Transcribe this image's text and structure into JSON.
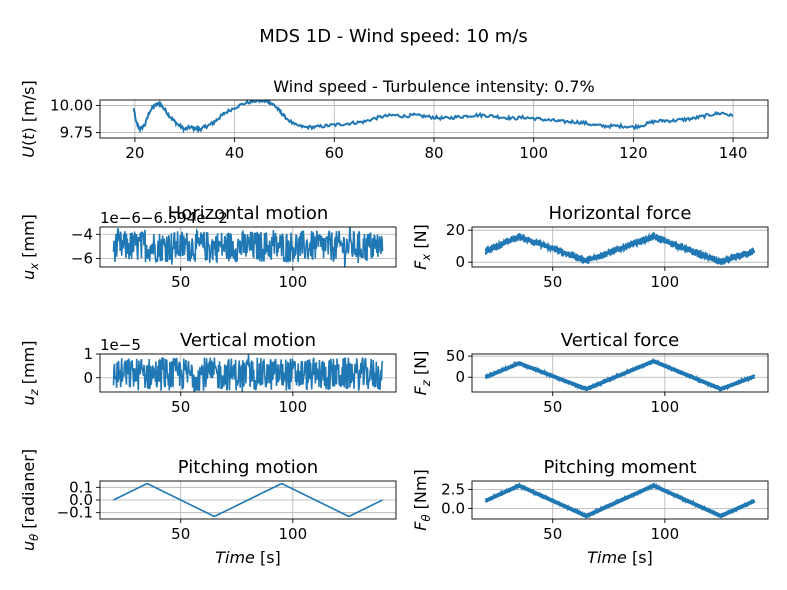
{
  "figure": {
    "suptitle": "MDS 1D - Wind speed: 10 m/s"
  },
  "chart_data": [
    {
      "id": "wind",
      "type": "line",
      "title": "Wind speed - Turbulence intensity: 0.7%",
      "xlabel": "",
      "ylabel": "U(t) [m/s]",
      "xlim": [
        13,
        147
      ],
      "ylim": [
        9.7,
        10.05
      ],
      "xticks": [
        20,
        40,
        60,
        80,
        100,
        120,
        140
      ],
      "yticks": [
        9.75,
        10.0
      ],
      "ytick_labels": [
        "9.75",
        "10.00"
      ],
      "grid": true,
      "color": "#1f77b4",
      "series": [
        {
          "x": [
            19.8,
            20.2,
            21,
            22,
            23,
            24,
            25,
            26,
            27,
            28,
            29,
            30,
            31,
            32,
            33,
            34,
            35,
            36,
            37,
            38,
            40,
            42,
            44,
            46,
            47,
            48,
            49,
            50,
            52,
            54,
            56,
            58,
            60,
            62,
            64,
            66,
            68,
            70,
            72,
            74,
            76,
            78,
            80,
            82,
            84,
            86,
            88,
            90,
            92,
            94,
            96,
            98,
            100,
            102,
            104,
            106,
            108,
            110,
            112,
            114,
            116,
            118,
            120,
            122,
            124,
            126,
            128,
            130,
            132,
            134,
            136,
            138,
            140
          ],
          "values": [
            9.97,
            9.85,
            9.78,
            9.82,
            9.95,
            10.0,
            10.02,
            9.96,
            9.9,
            9.85,
            9.81,
            9.78,
            9.8,
            9.79,
            9.78,
            9.8,
            9.82,
            9.85,
            9.89,
            9.93,
            9.98,
            10.02,
            10.04,
            10.04,
            10.03,
            10.0,
            9.95,
            9.9,
            9.82,
            9.8,
            9.8,
            9.81,
            9.82,
            9.83,
            9.84,
            9.85,
            9.88,
            9.9,
            9.91,
            9.9,
            9.91,
            9.9,
            9.89,
            9.88,
            9.89,
            9.9,
            9.91,
            9.91,
            9.9,
            9.89,
            9.88,
            9.89,
            9.88,
            9.87,
            9.86,
            9.85,
            9.85,
            9.84,
            9.82,
            9.81,
            9.81,
            9.81,
            9.8,
            9.82,
            9.85,
            9.86,
            9.86,
            9.87,
            9.88,
            9.9,
            9.92,
            9.93,
            9.9
          ]
        }
      ]
    },
    {
      "id": "ux",
      "type": "line",
      "title": "Horizontal motion",
      "xlabel": "",
      "ylabel": "u_x [mm]",
      "offset_text": "1e−6−6.594e−2",
      "xlim": [
        14,
        146
      ],
      "ylim": [
        -6.7,
        -3.4
      ],
      "xticks": [
        50,
        100
      ],
      "yticks": [
        -4,
        -6
      ],
      "ytick_labels": [
        "−4",
        "−6"
      ],
      "grid": true,
      "color": "#1f77b4",
      "noise_band": {
        "x": [
          20,
          140
        ],
        "center": -5.0,
        "amplitude": 1.3
      }
    },
    {
      "id": "fx",
      "type": "line",
      "title": "Horizontal force",
      "xlabel": "",
      "ylabel": "F_x [N]",
      "xlim": [
        14,
        146
      ],
      "ylim": [
        -3,
        22
      ],
      "xticks": [
        50,
        100
      ],
      "yticks": [
        0,
        20
      ],
      "ytick_labels": [
        "0",
        "20"
      ],
      "grid": true,
      "color": "#1f77b4",
      "series": [
        {
          "x": [
            20,
            35,
            65,
            95,
            125,
            140
          ],
          "values": [
            7,
            16,
            1,
            16,
            0,
            7
          ],
          "band": 2.5
        }
      ]
    },
    {
      "id": "uz",
      "type": "line",
      "title": "Vertical motion",
      "xlabel": "",
      "ylabel": "u_z [mm]",
      "offset_text": "1e−5",
      "xlim": [
        14,
        146
      ],
      "ylim": [
        -0.6,
        1.0
      ],
      "xticks": [
        50,
        100
      ],
      "yticks": [
        1,
        0
      ],
      "ytick_labels": [
        "1",
        "0"
      ],
      "grid": true,
      "color": "#1f77b4",
      "noise_band": {
        "x": [
          20,
          140
        ],
        "center": 0.15,
        "amplitude": 0.7
      }
    },
    {
      "id": "fz",
      "type": "line",
      "title": "Vertical force",
      "xlabel": "",
      "ylabel": "F_z [N]",
      "xlim": [
        14,
        146
      ],
      "ylim": [
        -35,
        55
      ],
      "xticks": [
        50,
        100
      ],
      "yticks": [
        50,
        0
      ],
      "ytick_labels": [
        "50",
        "0"
      ],
      "grid": true,
      "color": "#1f77b4",
      "series": [
        {
          "x": [
            20,
            35,
            65,
            95,
            125,
            140
          ],
          "values": [
            0,
            33,
            -28,
            38,
            -28,
            2
          ],
          "band": 5
        }
      ]
    },
    {
      "id": "utheta",
      "type": "line",
      "title": "Pitching motion",
      "xlabel": "Time [s]",
      "ylabel": "u_θ [radianer]",
      "xlim": [
        14,
        146
      ],
      "ylim": [
        -0.15,
        0.15
      ],
      "xticks": [
        50,
        100
      ],
      "yticks": [
        0.1,
        0.0,
        -0.1
      ],
      "ytick_labels": [
        "0.1",
        "0.0",
        "−0.1"
      ],
      "grid": true,
      "color": "#1f77b4",
      "series": [
        {
          "x": [
            20,
            35,
            65,
            95,
            125,
            140
          ],
          "values": [
            0.0,
            0.13,
            -0.13,
            0.13,
            -0.13,
            0.0
          ]
        }
      ]
    },
    {
      "id": "ftheta",
      "type": "line",
      "title": "Pitching moment",
      "xlabel": "Time [s]",
      "ylabel": "F_θ [Nm]",
      "xlim": [
        14,
        146
      ],
      "ylim": [
        -1.4,
        3.6
      ],
      "xticks": [
        50,
        100
      ],
      "yticks": [
        2.5,
        0.0
      ],
      "ytick_labels": [
        "2.5",
        "0.0"
      ],
      "grid": true,
      "color": "#1f77b4",
      "series": [
        {
          "x": [
            20,
            35,
            65,
            95,
            125,
            140
          ],
          "values": [
            1.0,
            3.0,
            -1.0,
            3.0,
            -1.0,
            1.0
          ],
          "band": 0.25
        }
      ]
    }
  ]
}
